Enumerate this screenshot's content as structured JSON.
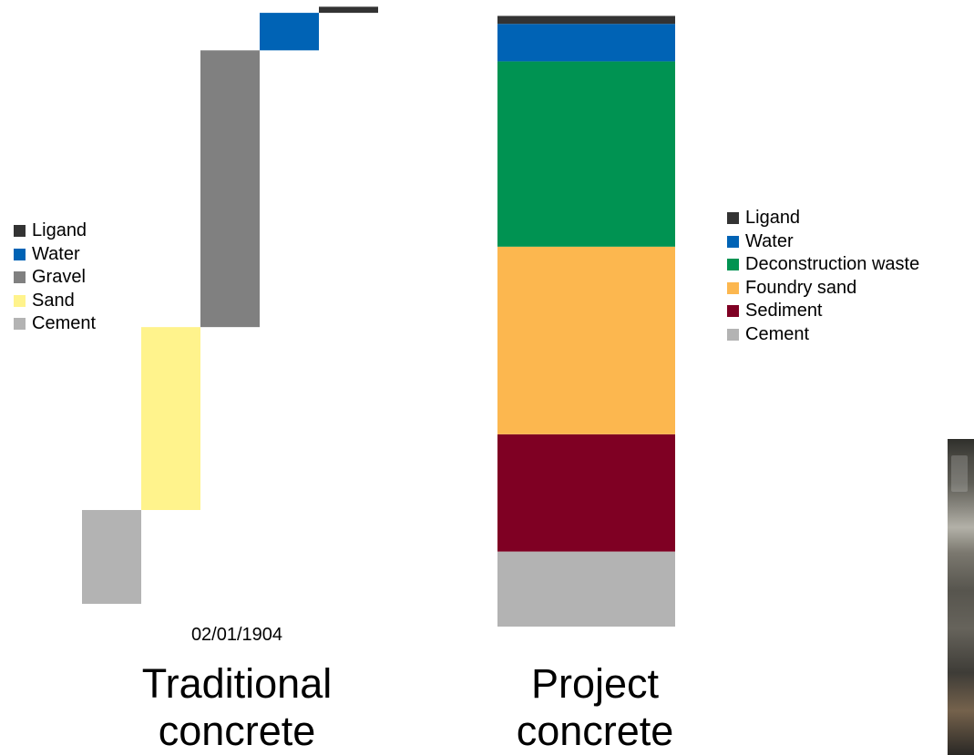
{
  "chart_data": [
    {
      "type": "waterfall",
      "caption": [
        "Traditional",
        "concrete"
      ],
      "date_label": "02/01/1904",
      "series": [
        {
          "name": "Cement",
          "value": 20,
          "color": "#b3b3b3"
        },
        {
          "name": "Sand",
          "value": 39,
          "color": "#fff38c"
        },
        {
          "name": "Gravel",
          "value": 59,
          "color": "#808080"
        },
        {
          "name": "Water",
          "value": 8,
          "color": "#0063b5"
        },
        {
          "name": "Ligand",
          "value": 1.3,
          "color": "#333333"
        }
      ],
      "legend": [
        "Ligand",
        "Water",
        "Gravel",
        "Sand",
        "Cement"
      ],
      "legend_placement": "left"
    },
    {
      "type": "stacked-bar",
      "caption": [
        "Project",
        "concrete"
      ],
      "series": [
        {
          "name": "Cement",
          "value": 16,
          "color": "#b3b3b3"
        },
        {
          "name": "Sediment",
          "value": 25,
          "color": "#7f0023"
        },
        {
          "name": "Foundry sand",
          "value": 40,
          "color": "#fcb74f"
        },
        {
          "name": "Deconstruction waste",
          "value": 39.5,
          "color": "#009352"
        },
        {
          "name": "Water",
          "value": 8,
          "color": "#0063b5"
        },
        {
          "name": "Ligand",
          "value": 1.7,
          "color": "#333333"
        }
      ],
      "legend": [
        "Ligand",
        "Water",
        "Deconstruction waste",
        "Foundry sand",
        "Sediment",
        "Cement"
      ],
      "legend_placement": "right"
    }
  ]
}
